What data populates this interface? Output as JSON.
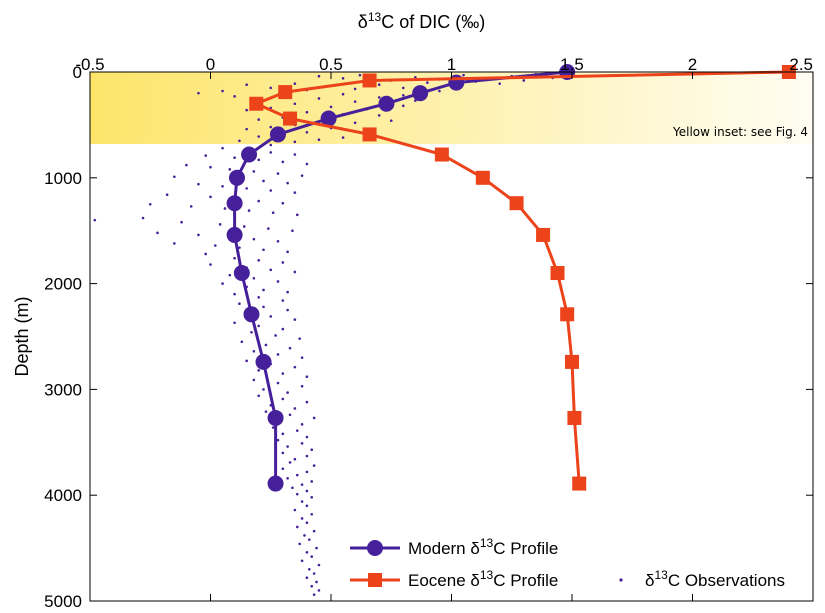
{
  "chart_data": {
    "type": "line",
    "title": "",
    "xlabel": {
      "prefix": "δ",
      "sup": "13",
      "suffix": "C of DIC (‰)"
    },
    "ylabel": "Depth (m)",
    "x_axis_position": "top",
    "y_reversed": true,
    "xlim": [
      -0.5,
      2.5
    ],
    "ylim": [
      0,
      5000
    ],
    "xticks": [
      -0.5,
      0,
      0.5,
      1,
      1.5,
      2,
      2.5
    ],
    "xtick_labels": [
      "-0.5",
      "0",
      "0.5",
      "1",
      "1.5",
      "2",
      "2.5"
    ],
    "yticks": [
      0,
      1000,
      2000,
      3000,
      4000,
      5000
    ],
    "ytick_labels": [
      "0",
      "1000",
      "2000",
      "3000",
      "4000",
      "5000"
    ],
    "grid": false,
    "legend_position": "bottom-right",
    "inset_region": {
      "label": "Yellow inset: see Fig. 4",
      "depth_range": [
        0,
        680
      ],
      "color_from": "#fde56a",
      "color_to": "#fffdf3"
    },
    "series": [
      {
        "name": {
          "prefix": "Modern δ",
          "sup": "13",
          "suffix": "C Profile"
        },
        "color": "#46209a",
        "marker": "circle",
        "points": [
          [
            1.48,
            0
          ],
          [
            1.02,
            100
          ],
          [
            0.87,
            200
          ],
          [
            0.73,
            300
          ],
          [
            0.49,
            440
          ],
          [
            0.28,
            590
          ],
          [
            0.16,
            780
          ],
          [
            0.11,
            1000
          ],
          [
            0.1,
            1240
          ],
          [
            0.1,
            1540
          ],
          [
            0.13,
            1900
          ],
          [
            0.17,
            2290
          ],
          [
            0.22,
            2740
          ],
          [
            0.27,
            3270
          ],
          [
            0.27,
            3890
          ]
        ]
      },
      {
        "name": {
          "prefix": "Eocene δ",
          "sup": "13",
          "suffix": "C Profile"
        },
        "color": "#ec431b",
        "marker": "square",
        "points": [
          [
            2.4,
            0
          ],
          [
            0.66,
            80
          ],
          [
            0.31,
            190
          ],
          [
            0.19,
            300
          ],
          [
            0.33,
            440
          ],
          [
            0.66,
            590
          ],
          [
            0.96,
            780
          ],
          [
            1.13,
            1000
          ],
          [
            1.27,
            1240
          ],
          [
            1.38,
            1540
          ],
          [
            1.44,
            1900
          ],
          [
            1.48,
            2290
          ],
          [
            1.5,
            2740
          ],
          [
            1.51,
            3270
          ],
          [
            1.53,
            3890
          ]
        ]
      }
    ],
    "observations": {
      "name": {
        "prefix": "δ",
        "sup": "13",
        "suffix": "C Observations"
      },
      "color": "#46209a",
      "points": [
        [
          0.45,
          40
        ],
        [
          0.55,
          60
        ],
        [
          0.62,
          30
        ],
        [
          0.75,
          80
        ],
        [
          0.85,
          50
        ],
        [
          0.95,
          70
        ],
        [
          1.05,
          30
        ],
        [
          1.15,
          60
        ],
        [
          1.25,
          40
        ],
        [
          1.35,
          20
        ],
        [
          1.42,
          55
        ],
        [
          1.3,
          80
        ],
        [
          1.1,
          90
        ],
        [
          0.9,
          100
        ],
        [
          0.7,
          120
        ],
        [
          0.5,
          130
        ],
        [
          0.35,
          110
        ],
        [
          1.2,
          110
        ],
        [
          1.0,
          140
        ],
        [
          0.8,
          150
        ],
        [
          0.6,
          160
        ],
        [
          0.4,
          170
        ],
        [
          0.25,
          150
        ],
        [
          0.15,
          120
        ],
        [
          0.05,
          180
        ],
        [
          -0.05,
          200
        ],
        [
          0.3,
          200
        ],
        [
          0.55,
          210
        ],
        [
          0.8,
          220
        ],
        [
          0.95,
          180
        ],
        [
          0.7,
          240
        ],
        [
          0.45,
          250
        ],
        [
          0.2,
          260
        ],
        [
          0.1,
          230
        ],
        [
          0.6,
          280
        ],
        [
          0.85,
          270
        ],
        [
          0.35,
          300
        ],
        [
          0.5,
          330
        ],
        [
          0.65,
          350
        ],
        [
          0.8,
          320
        ],
        [
          0.25,
          340
        ],
        [
          0.15,
          360
        ],
        [
          0.4,
          380
        ],
        [
          0.55,
          400
        ],
        [
          0.7,
          410
        ],
        [
          0.3,
          430
        ],
        [
          0.2,
          450
        ],
        [
          0.45,
          470
        ],
        [
          0.6,
          480
        ],
        [
          0.75,
          460
        ],
        [
          0.35,
          500
        ],
        [
          0.25,
          520
        ],
        [
          0.15,
          540
        ],
        [
          0.5,
          530
        ],
        [
          0.65,
          550
        ],
        [
          0.4,
          570
        ],
        [
          0.3,
          590
        ],
        [
          0.2,
          610
        ],
        [
          0.55,
          620
        ],
        [
          0.45,
          640
        ],
        [
          0.35,
          660
        ],
        [
          0.12,
          650
        ],
        [
          0.25,
          690
        ],
        [
          0.05,
          720
        ],
        [
          0.15,
          740
        ],
        [
          0.25,
          760
        ],
        [
          0.35,
          780
        ],
        [
          -0.02,
          790
        ],
        [
          0.1,
          810
        ],
        [
          0.2,
          830
        ],
        [
          0.3,
          850
        ],
        [
          0.4,
          870
        ],
        [
          -0.1,
          880
        ],
        [
          0.0,
          900
        ],
        [
          0.08,
          920
        ],
        [
          0.18,
          940
        ],
        [
          0.28,
          960
        ],
        [
          0.38,
          980
        ],
        [
          -0.15,
          990
        ],
        [
          0.12,
          1010
        ],
        [
          0.22,
          1030
        ],
        [
          0.32,
          1050
        ],
        [
          -0.05,
          1060
        ],
        [
          0.05,
          1080
        ],
        [
          0.15,
          1100
        ],
        [
          0.25,
          1120
        ],
        [
          0.35,
          1140
        ],
        [
          -0.18,
          1160
        ],
        [
          0.0,
          1180
        ],
        [
          0.1,
          1200
        ],
        [
          0.2,
          1220
        ],
        [
          0.3,
          1240
        ],
        [
          -0.25,
          1250
        ],
        [
          -0.08,
          1270
        ],
        [
          0.06,
          1290
        ],
        [
          0.16,
          1310
        ],
        [
          0.26,
          1330
        ],
        [
          0.36,
          1350
        ],
        [
          -0.48,
          1400
        ],
        [
          -0.28,
          1380
        ],
        [
          -0.12,
          1420
        ],
        [
          0.04,
          1440
        ],
        [
          0.14,
          1460
        ],
        [
          0.24,
          1480
        ],
        [
          0.34,
          1500
        ],
        [
          -0.22,
          1520
        ],
        [
          -0.05,
          1540
        ],
        [
          0.08,
          1560
        ],
        [
          0.18,
          1580
        ],
        [
          0.28,
          1600
        ],
        [
          -0.15,
          1620
        ],
        [
          0.02,
          1640
        ],
        [
          0.12,
          1660
        ],
        [
          0.22,
          1680
        ],
        [
          0.32,
          1700
        ],
        [
          -0.02,
          1720
        ],
        [
          0.1,
          1760
        ],
        [
          0.2,
          1780
        ],
        [
          0.3,
          1800
        ],
        [
          0.0,
          1820
        ],
        [
          0.15,
          1850
        ],
        [
          0.25,
          1870
        ],
        [
          0.35,
          1890
        ],
        [
          0.08,
          1920
        ],
        [
          0.18,
          1950
        ],
        [
          0.28,
          1980
        ],
        [
          0.05,
          2000
        ],
        [
          0.15,
          2030
        ],
        [
          0.22,
          2060
        ],
        [
          0.32,
          2080
        ],
        [
          0.1,
          2100
        ],
        [
          0.2,
          2130
        ],
        [
          0.3,
          2160
        ],
        [
          0.12,
          2190
        ],
        [
          0.22,
          2220
        ],
        [
          0.32,
          2250
        ],
        [
          0.15,
          2280
        ],
        [
          0.25,
          2310
        ],
        [
          0.35,
          2340
        ],
        [
          0.1,
          2370
        ],
        [
          0.2,
          2400
        ],
        [
          0.3,
          2430
        ],
        [
          0.17,
          2460
        ],
        [
          0.27,
          2490
        ],
        [
          0.37,
          2520
        ],
        [
          0.13,
          2550
        ],
        [
          0.23,
          2580
        ],
        [
          0.33,
          2610
        ],
        [
          0.18,
          2640
        ],
        [
          0.28,
          2670
        ],
        [
          0.38,
          2700
        ],
        [
          0.15,
          2730
        ],
        [
          0.25,
          2760
        ],
        [
          0.35,
          2790
        ],
        [
          0.2,
          2820
        ],
        [
          0.3,
          2850
        ],
        [
          0.4,
          2880
        ],
        [
          0.18,
          2910
        ],
        [
          0.28,
          2940
        ],
        [
          0.38,
          2970
        ],
        [
          0.22,
          3000
        ],
        [
          0.32,
          3030
        ],
        [
          0.2,
          3060
        ],
        [
          0.3,
          3090
        ],
        [
          0.4,
          3120
        ],
        [
          0.25,
          3150
        ],
        [
          0.35,
          3180
        ],
        [
          0.23,
          3210
        ],
        [
          0.33,
          3240
        ],
        [
          0.43,
          3270
        ],
        [
          0.28,
          3300
        ],
        [
          0.38,
          3330
        ],
        [
          0.26,
          3360
        ],
        [
          0.36,
          3390
        ],
        [
          0.3,
          3420
        ],
        [
          0.4,
          3450
        ],
        [
          0.28,
          3480
        ],
        [
          0.38,
          3510
        ],
        [
          0.32,
          3540
        ],
        [
          0.42,
          3570
        ],
        [
          0.3,
          3600
        ],
        [
          0.4,
          3630
        ],
        [
          0.35,
          3660
        ],
        [
          0.33,
          3690
        ],
        [
          0.43,
          3720
        ],
        [
          0.3,
          3750
        ],
        [
          0.4,
          3780
        ],
        [
          0.36,
          3810
        ],
        [
          0.32,
          3840
        ],
        [
          0.42,
          3870
        ],
        [
          0.38,
          3900
        ],
        [
          0.34,
          3930
        ],
        [
          0.4,
          3960
        ],
        [
          0.36,
          3990
        ],
        [
          0.42,
          4020
        ],
        [
          0.38,
          4060
        ],
        [
          0.4,
          4100
        ],
        [
          0.35,
          4140
        ],
        [
          0.42,
          4180
        ],
        [
          0.38,
          4220
        ],
        [
          0.4,
          4260
        ],
        [
          0.36,
          4300
        ],
        [
          0.43,
          4340
        ],
        [
          0.39,
          4380
        ],
        [
          0.41,
          4420
        ],
        [
          0.37,
          4460
        ],
        [
          0.44,
          4500
        ],
        [
          0.4,
          4540
        ],
        [
          0.42,
          4580
        ],
        [
          0.38,
          4620
        ],
        [
          0.45,
          4660
        ],
        [
          0.41,
          4700
        ],
        [
          0.43,
          4740
        ],
        [
          0.4,
          4780
        ],
        [
          0.44,
          4820
        ],
        [
          0.42,
          4860
        ],
        [
          0.45,
          4900
        ],
        [
          0.43,
          4940
        ]
      ]
    }
  }
}
